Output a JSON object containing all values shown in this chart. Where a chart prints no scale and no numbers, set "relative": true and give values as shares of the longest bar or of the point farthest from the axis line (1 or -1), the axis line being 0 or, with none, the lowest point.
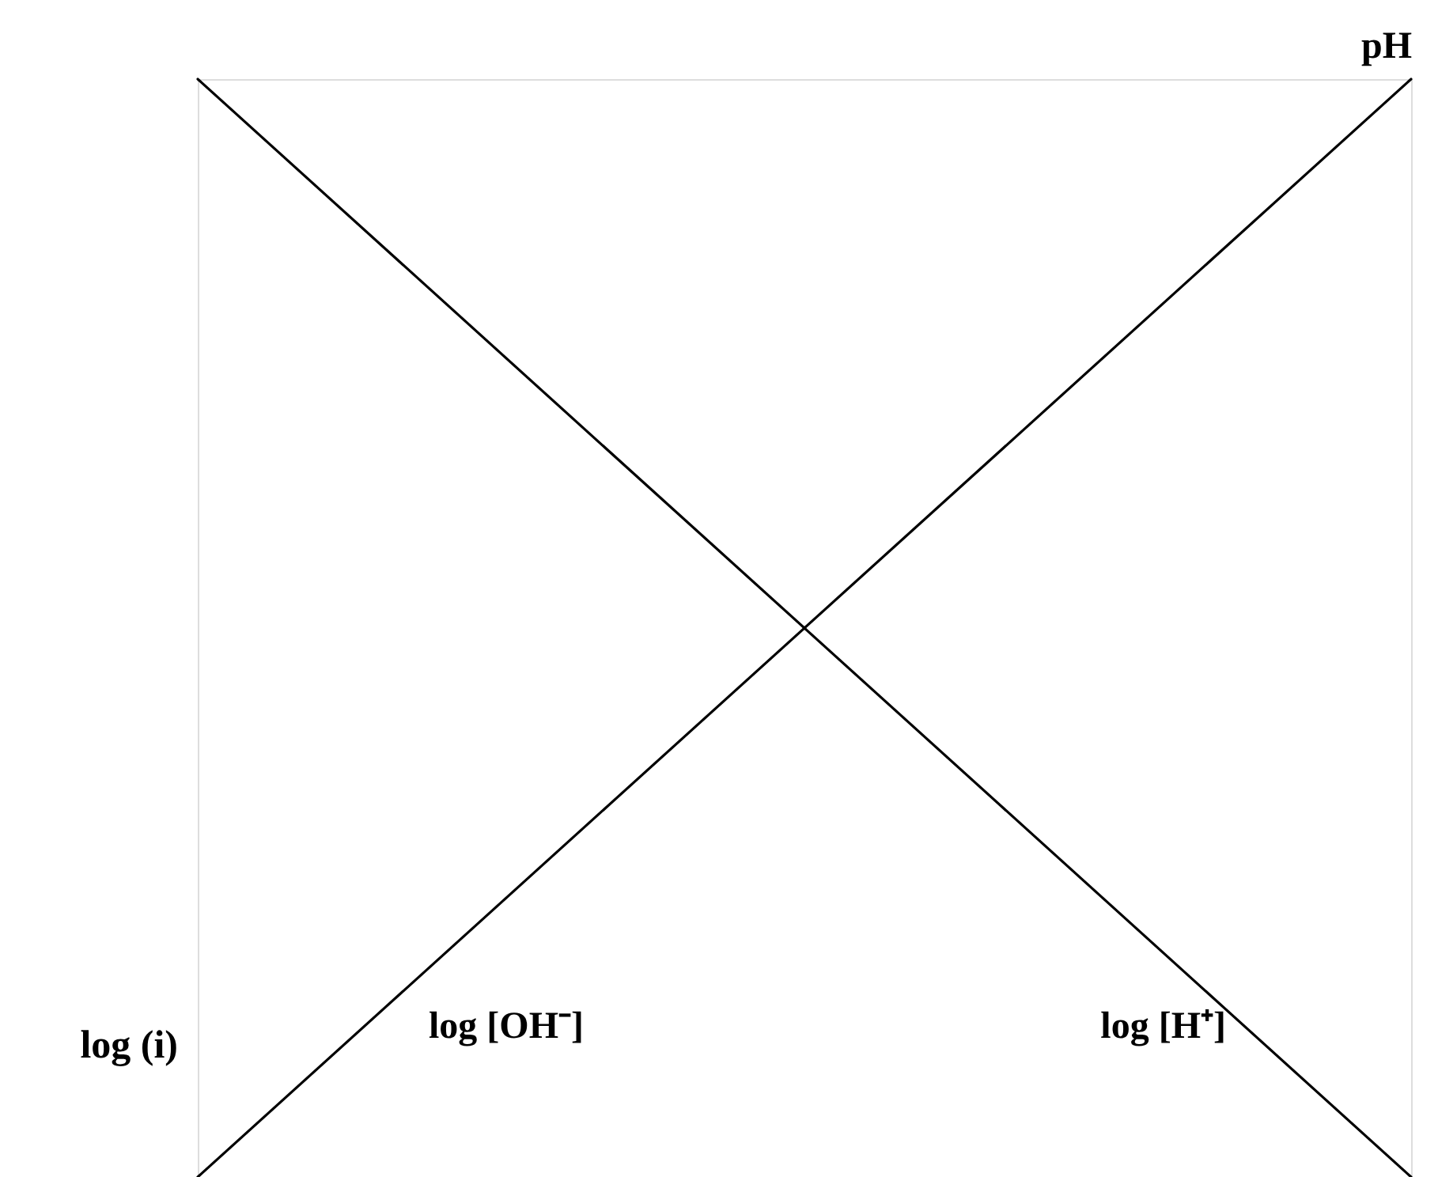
{
  "chart_data": {
    "type": "line",
    "relative": true,
    "xlabel": "pH",
    "ylabel": "log (i)",
    "categories": [
      null,
      null
    ],
    "series": [
      {
        "name": "log [OH⁻]",
        "color": "#000000",
        "values": [
          0,
          1
        ]
      },
      {
        "name": "log [H⁺]",
        "color": "#000000",
        "values": [
          1,
          0
        ]
      }
    ]
  }
}
